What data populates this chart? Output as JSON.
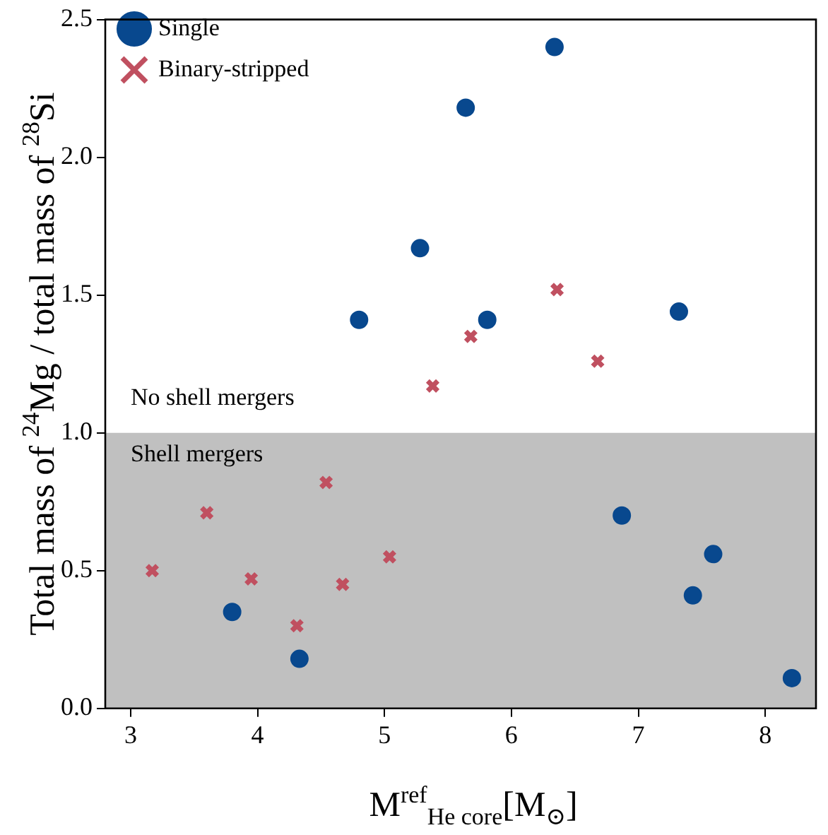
{
  "chart_data": {
    "type": "scatter",
    "xlabel": "M$^{ref}$$_{He core}$[M$_{⊙}$]",
    "ylabel": "Total mass of $^{24}$Mg / total mass of $^{28}$Si",
    "xlim": [
      2.8,
      8.4
    ],
    "xticks": [
      3,
      4,
      5,
      6,
      7,
      8
    ],
    "ylim": [
      0,
      2.5
    ],
    "yticks": [
      {
        "value": 0,
        "label": "0.0"
      },
      0.5,
      {
        "value": 1,
        "label": "1.0"
      },
      1.5,
      {
        "value": 2,
        "label": "2.0"
      },
      2.5
    ],
    "grid": false,
    "legend": "top left",
    "bands": [
      {
        "axis": "y",
        "from": 0,
        "to": 1,
        "label": "Shell mergers",
        "color": "#c0c0c0"
      }
    ],
    "annotations": [
      "No shell mergers"
    ],
    "series": [
      {
        "name": "Single",
        "color": "#08488e",
        "marker": "circle",
        "x": [
          3.8,
          4.33,
          4.8,
          5.28,
          5.64,
          5.81,
          6.34,
          6.87,
          7.32,
          7.43,
          7.59,
          8.21
        ],
        "values": [
          0.35,
          0.18,
          1.41,
          1.67,
          2.18,
          1.41,
          2.4,
          0.7,
          1.44,
          0.41,
          0.56,
          0.11
        ]
      },
      {
        "name": "Binary-stripped",
        "color": "#c05060",
        "marker": "cross",
        "x": [
          3.17,
          3.6,
          3.95,
          4.31,
          4.54,
          4.67,
          5.04,
          5.38,
          5.68,
          6.36,
          6.68
        ],
        "values": [
          0.5,
          0.71,
          0.47,
          0.3,
          0.82,
          0.45,
          0.55,
          1.17,
          1.35,
          1.52,
          1.26
        ]
      }
    ]
  }
}
